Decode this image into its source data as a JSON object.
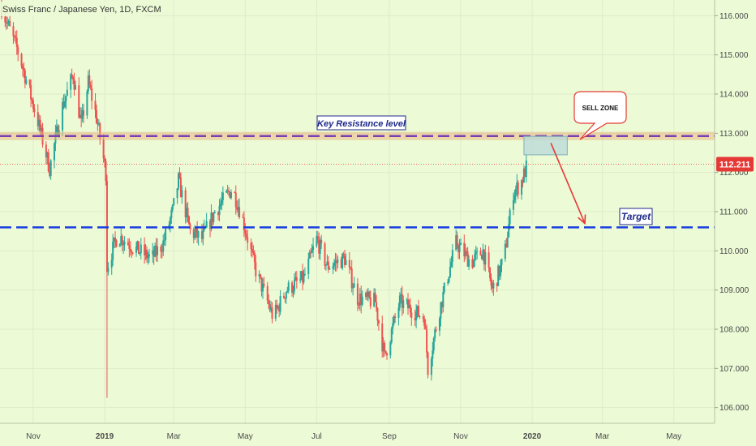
{
  "header": {
    "title": "Swiss Franc / Japanese Yen, 1D, FXCM"
  },
  "price_badge": {
    "text": "112.211",
    "color": "#e53935"
  },
  "annotations": {
    "key_resistance": "Key Resistance level",
    "sell_zone": "SELL ZONE",
    "target": "Target"
  },
  "colors": {
    "background": "#ecfad6",
    "up": "#26a69a",
    "down": "#ef5350",
    "resistance_line": "#7b3fb0",
    "resistance_band": "#e8b27a",
    "target_line": "#1a3fe0",
    "zone_fill": "#b8d8d8",
    "arrow": "#e53935"
  },
  "chart_data": {
    "type": "candlestick",
    "symbol": "Swiss Franc / Japanese Yen, 1D, FXCM",
    "y_axis": {
      "ticks": [
        "116.000",
        "115.000",
        "114.000",
        "113.000",
        "112.000",
        "111.000",
        "110.000",
        "109.000",
        "108.000",
        "107.000",
        "106.000"
      ],
      "ylim": [
        105.6,
        116.4
      ]
    },
    "x_axis": {
      "ticks": [
        {
          "label": "Nov",
          "date": "2018-11-01"
        },
        {
          "label": "2019",
          "date": "2019-01-01"
        },
        {
          "label": "Mar",
          "date": "2019-03-01"
        },
        {
          "label": "May",
          "date": "2019-05-01"
        },
        {
          "label": "Jul",
          "date": "2019-07-01"
        },
        {
          "label": "Sep",
          "date": "2019-09-01"
        },
        {
          "label": "Nov",
          "date": "2019-11-01"
        },
        {
          "label": "2020",
          "date": "2020-01-01"
        },
        {
          "label": "Mar",
          "date": "2020-03-01"
        },
        {
          "label": "May",
          "date": "2020-05-01"
        }
      ]
    },
    "last_price": 112.211,
    "key_resistance": 112.93,
    "target_level": 110.6,
    "sell_zone": {
      "from": "2019-12-25",
      "to": "2020-01-31",
      "low": 112.45,
      "high": 112.92
    },
    "arrow": {
      "from": {
        "date": "2020-01-17",
        "price": 112.75
      },
      "to": {
        "date": "2020-02-15",
        "price": 110.7
      }
    },
    "price_path": [
      [
        "2018-10-05",
        116.2
      ],
      [
        "2018-10-20",
        115.0
      ],
      [
        "2018-11-05",
        113.3
      ],
      [
        "2018-11-15",
        112.1
      ],
      [
        "2018-11-25",
        113.6
      ],
      [
        "2018-12-05",
        114.5
      ],
      [
        "2018-12-12",
        113.2
      ],
      [
        "2018-12-18",
        114.3
      ],
      [
        "2018-12-25",
        113.4
      ],
      [
        "2019-01-02",
        112.0
      ],
      [
        "2019-01-03",
        109.6
      ],
      [
        "2019-01-12",
        110.4
      ],
      [
        "2019-01-25",
        110.1
      ],
      [
        "2019-02-10",
        109.8
      ],
      [
        "2019-02-20",
        110.2
      ],
      [
        "2019-02-28",
        111.0
      ],
      [
        "2019-03-05",
        111.8
      ],
      [
        "2019-03-15",
        110.5
      ],
      [
        "2019-03-25",
        110.3
      ],
      [
        "2019-04-05",
        111.0
      ],
      [
        "2019-04-20",
        111.6
      ],
      [
        "2019-04-28",
        110.9
      ],
      [
        "2019-05-10",
        109.5
      ],
      [
        "2019-05-25",
        108.3
      ],
      [
        "2019-06-05",
        109.0
      ],
      [
        "2019-06-20",
        109.3
      ],
      [
        "2019-07-01",
        110.3
      ],
      [
        "2019-07-10",
        109.6
      ],
      [
        "2019-07-25",
        109.8
      ],
      [
        "2019-08-05",
        108.8
      ],
      [
        "2019-08-20",
        108.7
      ],
      [
        "2019-08-28",
        107.3
      ],
      [
        "2019-09-10",
        108.7
      ],
      [
        "2019-09-20",
        108.5
      ],
      [
        "2019-10-01",
        108.3
      ],
      [
        "2019-10-04",
        107.0
      ],
      [
        "2019-10-14",
        108.5
      ],
      [
        "2019-10-28",
        110.2
      ],
      [
        "2019-11-10",
        109.7
      ],
      [
        "2019-11-20",
        110.0
      ],
      [
        "2019-11-28",
        109.0
      ],
      [
        "2019-12-08",
        109.8
      ],
      [
        "2019-12-16",
        111.5
      ],
      [
        "2019-12-22",
        111.7
      ],
      [
        "2019-12-28",
        112.2
      ]
    ]
  }
}
